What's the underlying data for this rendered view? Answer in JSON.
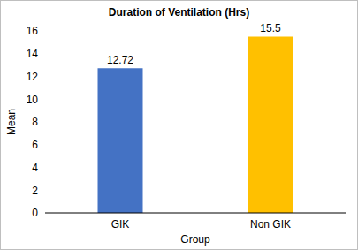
{
  "chart_data": {
    "type": "bar",
    "title": "Duration of Ventilation (Hrs)",
    "x_label": "Group",
    "y_label": "Mean",
    "categories": [
      "GIK",
      "Non GIK"
    ],
    "values": [
      12.72,
      15.5
    ],
    "colors": [
      "#4472c4",
      "#ffc000"
    ],
    "ylim": [
      0,
      16
    ],
    "yticks": [
      0,
      2,
      4,
      6,
      8,
      10,
      12,
      14,
      16
    ],
    "grid": false,
    "data_labels": true
  }
}
